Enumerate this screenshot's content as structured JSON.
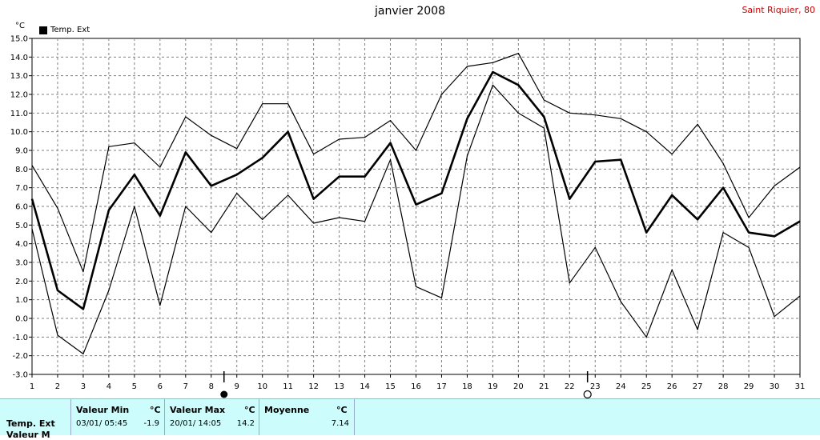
{
  "title": "janvier 2008",
  "station": "Saint Riquier, 80",
  "unit": "°C",
  "legend_label": "Temp. Ext",
  "icons": {
    "moon_full": "full-moon-icon",
    "moon_new": "new-moon-icon"
  },
  "stats": {
    "row_label": "Temp. Ext",
    "row_label_2": "Valeur M",
    "min": {
      "header": "Valeur Min",
      "unit": "°C",
      "date": "03/01/  05:45",
      "value": "-1.9"
    },
    "max": {
      "header": "Valeur Max",
      "unit": "°C",
      "date": "20/01/  14:05",
      "value": "14.2"
    },
    "avg": {
      "header": "Moyenne",
      "unit": "°C",
      "value": "7.14"
    }
  },
  "chart_data": {
    "type": "line",
    "x": [
      1,
      2,
      3,
      4,
      5,
      6,
      7,
      8,
      9,
      10,
      11,
      12,
      13,
      14,
      15,
      16,
      17,
      18,
      19,
      20,
      21,
      22,
      23,
      24,
      25,
      26,
      27,
      28,
      29,
      30,
      31
    ],
    "ylim": [
      -3.0,
      15.0
    ],
    "yticks": [
      -3.0,
      -2.0,
      -1.0,
      0.0,
      1.0,
      2.0,
      3.0,
      4.0,
      5.0,
      6.0,
      7.0,
      8.0,
      9.0,
      10.0,
      11.0,
      12.0,
      13.0,
      14.0,
      15.0
    ],
    "grid": true,
    "legend_position": "top-left",
    "moon_markers": [
      {
        "x": 8.5,
        "phase": "full"
      },
      {
        "x": 22.7,
        "phase": "new"
      }
    ],
    "series": [
      {
        "name": "max",
        "width": 1.2,
        "values": [
          8.2,
          5.9,
          2.5,
          9.2,
          9.4,
          8.1,
          10.8,
          9.8,
          9.1,
          11.5,
          11.5,
          8.8,
          9.6,
          9.7,
          10.6,
          9.0,
          12.0,
          13.5,
          13.7,
          14.2,
          11.7,
          11.0,
          10.9,
          10.7,
          10.0,
          8.8,
          10.4,
          8.3,
          5.4,
          7.1,
          8.1
        ]
      },
      {
        "name": "mean",
        "width": 2.6,
        "values": [
          6.4,
          1.5,
          0.5,
          5.8,
          7.7,
          5.5,
          8.9,
          7.1,
          7.7,
          8.6,
          10.0,
          6.4,
          7.6,
          7.6,
          9.4,
          6.1,
          6.7,
          10.7,
          13.2,
          12.5,
          10.8,
          6.4,
          8.4,
          8.5,
          4.6,
          6.6,
          5.3,
          7.0,
          4.6,
          4.4,
          5.2
        ]
      },
      {
        "name": "min",
        "width": 1.2,
        "values": [
          4.8,
          -0.9,
          -1.9,
          1.5,
          6.0,
          0.7,
          6.0,
          4.6,
          6.7,
          5.3,
          6.6,
          5.1,
          5.4,
          5.2,
          8.5,
          1.7,
          1.1,
          8.7,
          12.5,
          11.0,
          10.2,
          1.9,
          3.8,
          0.9,
          -1.0,
          2.6,
          -0.6,
          4.6,
          3.8,
          0.1,
          1.2
        ]
      }
    ]
  }
}
